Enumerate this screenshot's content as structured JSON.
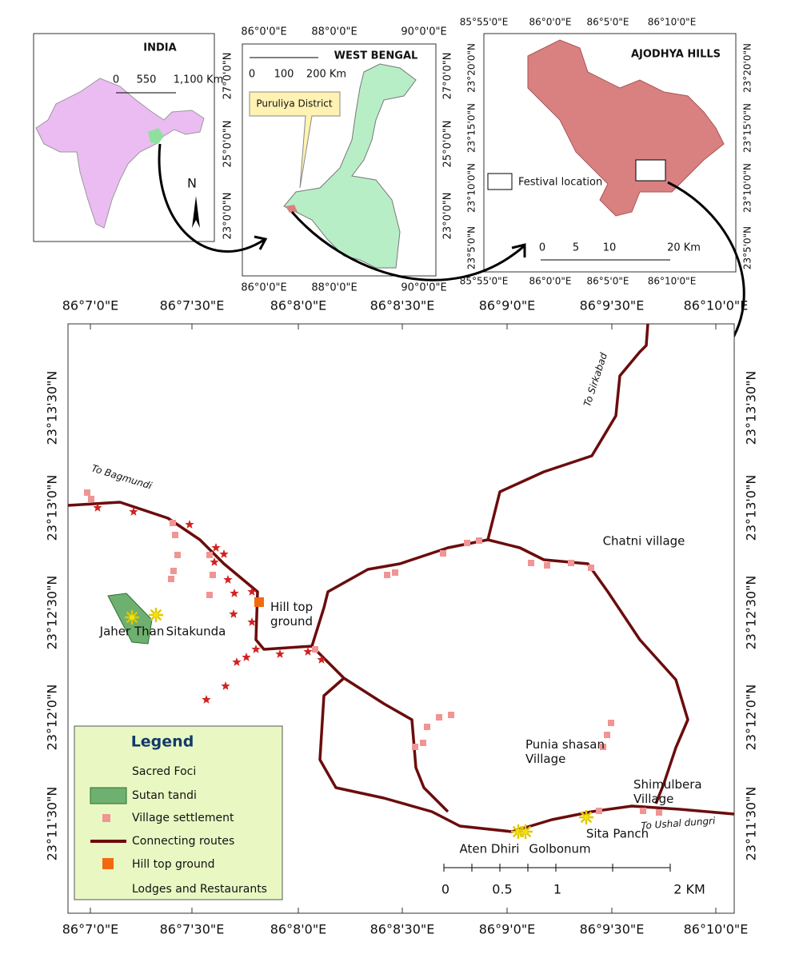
{
  "insets": {
    "india": {
      "title": "INDIA",
      "scale": [
        "0",
        "550",
        "1,100 Km"
      ],
      "north": "N"
    },
    "west_bengal": {
      "title": "WEST BENGAL",
      "x_labels": [
        "86°0'0\"E",
        "88°0'0\"E",
        "90°0'0\"E"
      ],
      "y_labels": [
        "27°0'0\"N",
        "25°0'0\"N",
        "23°0'0\"N"
      ],
      "scale": [
        "0",
        "100",
        "200 Km"
      ],
      "callout": "Puruliya District"
    },
    "ajodhya_hills": {
      "title": "AJODHYA HILLS",
      "x_labels": [
        "85°55'0\"E",
        "86°0'0\"E",
        "86°5'0\"E",
        "86°10'0\"E"
      ],
      "y_labels": [
        "23°20'0\"N",
        "23°15'0\"N",
        "23°10'0\"N",
        "23°5'0\"N"
      ],
      "legend": "Festival location",
      "scale": [
        "0",
        "5",
        "10",
        "20 Km"
      ]
    }
  },
  "main_map": {
    "x_labels": [
      "86°7'0\"E",
      "86°7'30\"E",
      "86°8'0\"E",
      "86°8'30\"E",
      "86°9'0\"E",
      "86°9'30\"E",
      "86°10'0\"E"
    ],
    "y_labels": [
      "23°13'30\"N",
      "23°13'0\"N",
      "23°12'30\"N",
      "23°12'0\"N",
      "23°11'30\"N"
    ],
    "places": [
      "To Sirkabad",
      "To Bagmundi",
      "Chatni village",
      "Hill top ground",
      "Jaher Than",
      "Sitakunda",
      "Punia shasan Village",
      "Shimulbera Village",
      "To Ushal dungri",
      "Sita Panch",
      "Aten Dhiri",
      "Golbonum"
    ],
    "scale": [
      "0",
      "0.5",
      "1",
      "2 KM"
    ],
    "legend": {
      "title": "Legend",
      "items": [
        "Sacred Foci",
        "Sutan tandi",
        "Village settlement",
        "Connecting routes",
        "Hill top ground",
        "Lodges and Restaurants"
      ]
    }
  }
}
